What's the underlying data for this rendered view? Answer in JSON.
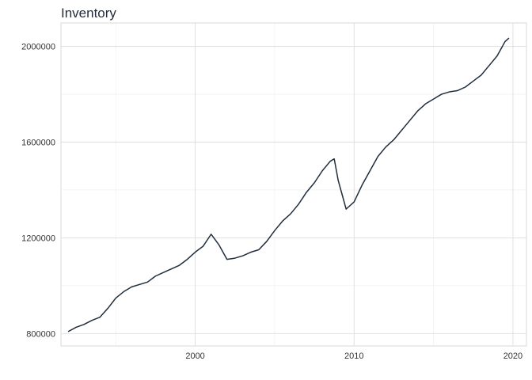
{
  "chart_data": {
    "type": "line",
    "title": "Inventory",
    "xlabel": "",
    "ylabel": "",
    "xlim": [
      1991.55,
      2020.85
    ],
    "ylim": [
      748000,
      2098000
    ],
    "x_ticks": [
      2000,
      2010,
      2020
    ],
    "x_tick_labels": [
      "2000",
      "2010",
      "2020"
    ],
    "y_ticks": [
      800000,
      1200000,
      1600000,
      2000000
    ],
    "y_tick_labels": [
      "800000",
      "1200000",
      "1600000",
      "2000000"
    ],
    "grid": true,
    "legend": "none",
    "line_color": "#1f2d3d",
    "x": [
      1992.0,
      1992.5,
      1993.0,
      1993.5,
      1994.0,
      1994.5,
      1995.0,
      1995.5,
      1996.0,
      1996.5,
      1997.0,
      1997.5,
      1998.0,
      1998.5,
      1999.0,
      1999.5,
      2000.0,
      2000.5,
      2001.0,
      2001.5,
      2002.0,
      2002.5,
      2003.0,
      2003.5,
      2004.0,
      2004.5,
      2005.0,
      2005.5,
      2006.0,
      2006.5,
      2007.0,
      2007.5,
      2008.0,
      2008.5,
      2008.75,
      2009.0,
      2009.25,
      2009.5,
      2010.0,
      2010.5,
      2011.0,
      2011.5,
      2012.0,
      2012.5,
      2013.0,
      2013.5,
      2014.0,
      2014.5,
      2015.0,
      2015.5,
      2016.0,
      2016.5,
      2017.0,
      2017.5,
      2018.0,
      2018.5,
      2019.0,
      2019.5,
      2019.75
    ],
    "y": [
      808000,
      826000,
      838000,
      855000,
      868000,
      905000,
      948000,
      975000,
      995000,
      1005000,
      1015000,
      1040000,
      1055000,
      1070000,
      1085000,
      1110000,
      1140000,
      1165000,
      1215000,
      1170000,
      1110000,
      1115000,
      1125000,
      1140000,
      1150000,
      1185000,
      1230000,
      1270000,
      1300000,
      1340000,
      1390000,
      1430000,
      1480000,
      1520000,
      1530000,
      1440000,
      1380000,
      1320000,
      1350000,
      1420000,
      1480000,
      1540000,
      1580000,
      1610000,
      1650000,
      1690000,
      1730000,
      1760000,
      1780000,
      1800000,
      1810000,
      1815000,
      1830000,
      1855000,
      1880000,
      1920000,
      1960000,
      2020000,
      2035000
    ]
  }
}
